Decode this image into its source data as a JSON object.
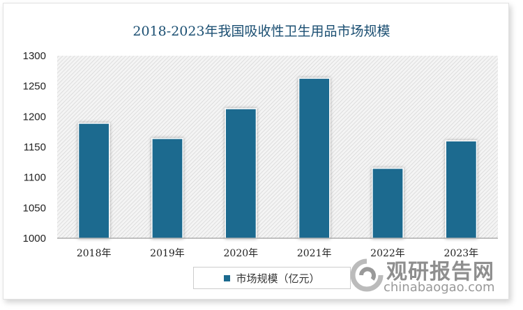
{
  "chart_data": {
    "type": "bar",
    "title": "2018-2023年我国吸收性卫生用品市场规模",
    "categories": [
      "2018年",
      "2019年",
      "2020年",
      "2021年",
      "2022年",
      "2023年"
    ],
    "series": [
      {
        "name": "市场规模（亿元）",
        "values": [
          1189,
          1164,
          1213,
          1263,
          1115,
          1160
        ],
        "color": "#1b6a8f"
      }
    ],
    "yticks": [
      1000,
      1050,
      1100,
      1150,
      1200,
      1250,
      1300
    ],
    "ylim": [
      1000,
      1300
    ],
    "grid": false,
    "legend_position": "bottom",
    "background": "diagonal-hatch"
  },
  "watermark": {
    "cn": "观研报告网",
    "en": "chinabaogao.com"
  }
}
